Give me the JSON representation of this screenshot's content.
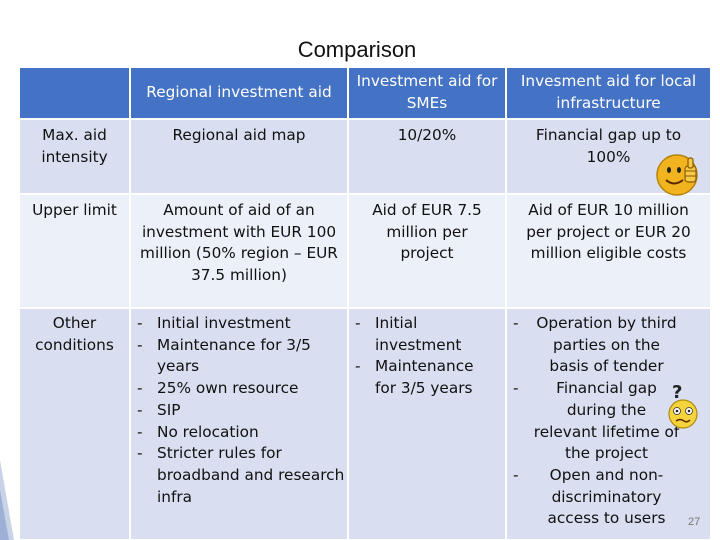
{
  "slide": {
    "title": "Comparison",
    "page_number": "27"
  },
  "table": {
    "headers": [
      "Regional investment aid",
      "Investment aid for SMEs",
      "Invesment aid for local infrastructure"
    ],
    "rows": [
      {
        "label": "Max. aid intensity",
        "regional": "Regional aid map",
        "smes": "10/20%",
        "infra": "Financial gap up to 100%"
      },
      {
        "label": "Upper limit",
        "regional": "Amount of aid of an investment with EUR 100 million (50% region – EUR 37.5 million)",
        "smes": "Aid of EUR 7.5 million per project",
        "infra": "Aid of EUR 10 million per project or EUR 20 million eligible costs"
      },
      {
        "label": "Other conditions",
        "regional_items": [
          "Initial investment",
          "Maintenance for 3/5 years",
          "25% own resource",
          "SIP",
          "No relocation",
          "Stricter rules for broadband and research infra"
        ],
        "smes_items": [
          "Initial investment",
          "Maintenance for 3/5 years"
        ],
        "infra_items": [
          "Operation by third parties on the basis of tender",
          "Financial gap during the relevant lifetime of the project",
          "Open and non-discriminatory access to users"
        ]
      }
    ]
  },
  "icons": {
    "thumbs_up": "thumbs-up-smiley-icon",
    "confused": "confused-smiley-icon"
  },
  "colors": {
    "header_bg": "#4472c4",
    "row_band_dark": "#d9dff0",
    "row_band_light": "#ecf0f8",
    "page_number": "#777777"
  }
}
